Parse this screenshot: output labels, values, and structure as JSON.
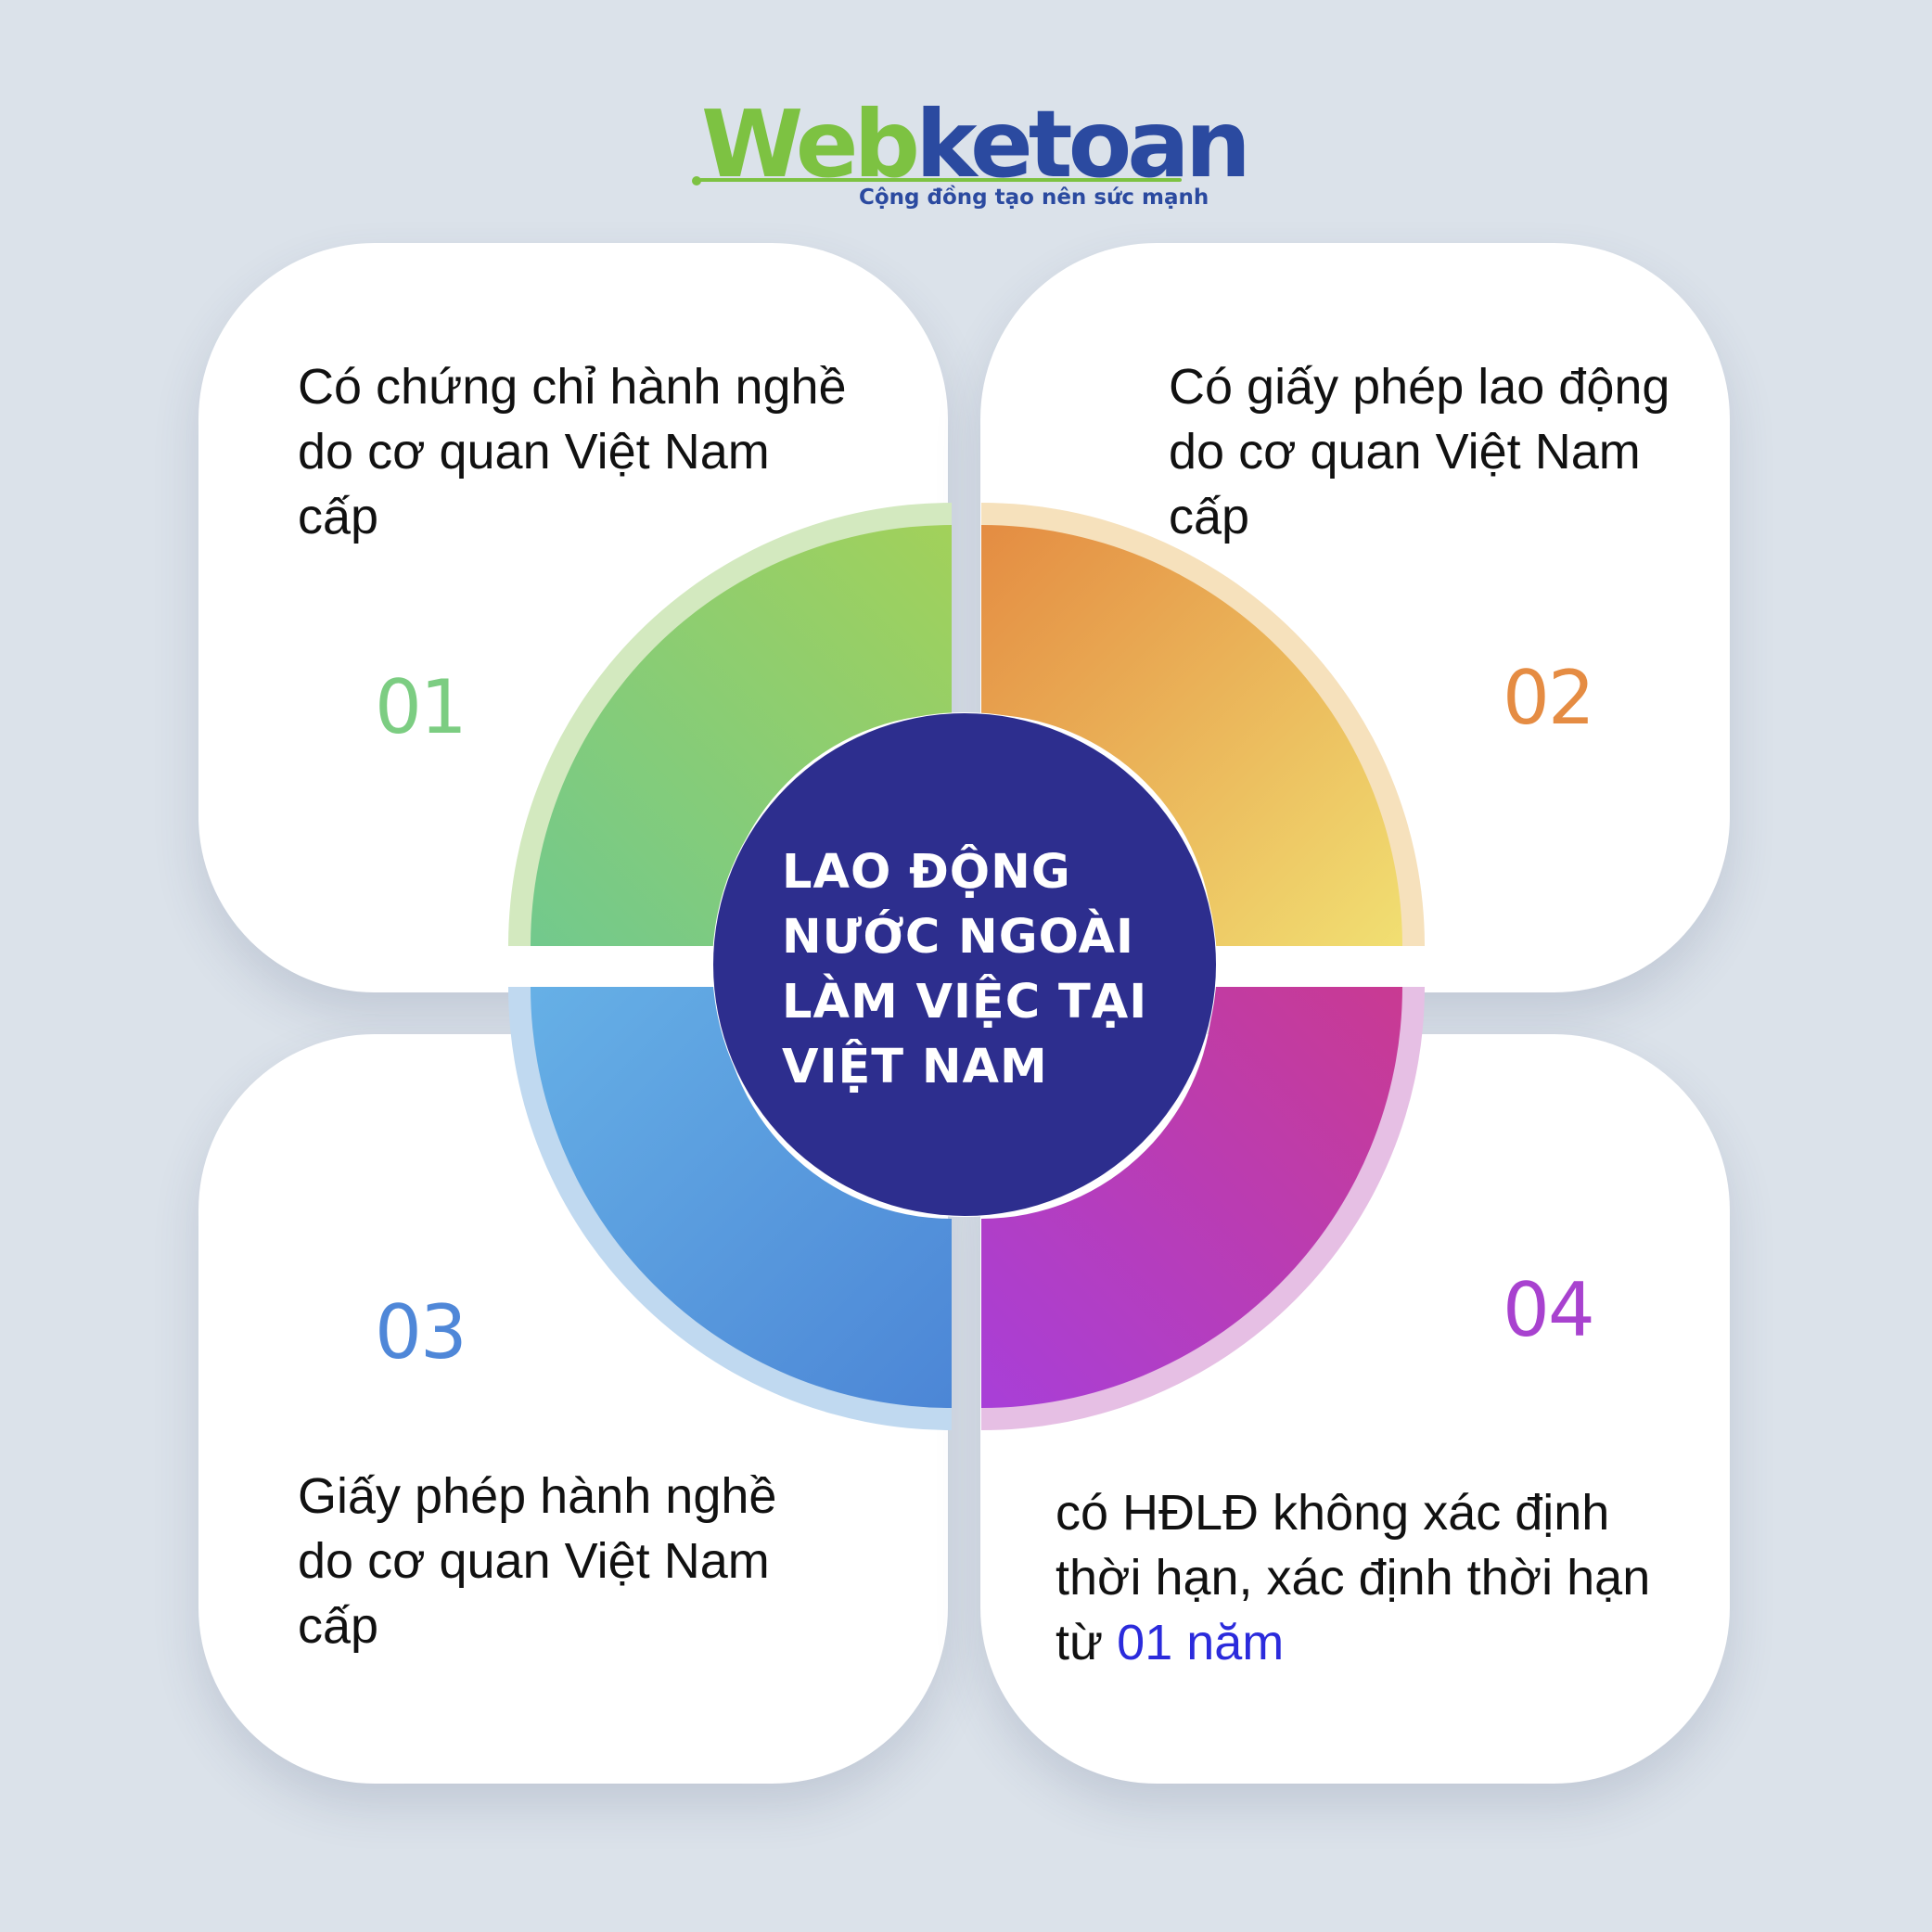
{
  "logo": {
    "brand_part1": "Web",
    "brand_part2": "ketoan",
    "tagline": "Cộng đồng tạo nên sức mạnh"
  },
  "center": {
    "title_lines": [
      "LAO ĐỘNG",
      "NƯỚC NGOÀI",
      "LÀM VIỆC TẠI",
      "VIỆT NAM"
    ]
  },
  "items": [
    {
      "number": "01",
      "lines": [
        "Có chứng chỉ hành nghề",
        "do cơ quan Việt Nam",
        "cấp"
      ],
      "color": "#7ccd82"
    },
    {
      "number": "02",
      "lines": [
        "Có giấy phép lao động",
        "do cơ quan Việt Nam",
        "cấp"
      ],
      "color": "#e58c43"
    },
    {
      "number": "03",
      "lines": [
        "Giấy phép hành nghề",
        "do cơ quan Việt Nam",
        "cấp"
      ],
      "color": "#4f87d8"
    },
    {
      "number": "04",
      "lines": [
        "có HĐLĐ không xác định",
        "thời hạn, xác định thời hạn",
        "từ "
      ],
      "highlight": "01 năm",
      "color": "#a842cf"
    }
  ],
  "colors": {
    "background": "#dbe2ea",
    "center_circle": "#2d2e8e",
    "seg1": [
      "#72c98d",
      "#a2d15a"
    ],
    "seg2": [
      "#e48c42",
      "#f1df72"
    ],
    "seg3": [
      "#66b0e6",
      "#4c86d6"
    ],
    "seg4": [
      "#a83fd8",
      "#c93a92"
    ],
    "highlight_text": "#2b2bdc"
  }
}
